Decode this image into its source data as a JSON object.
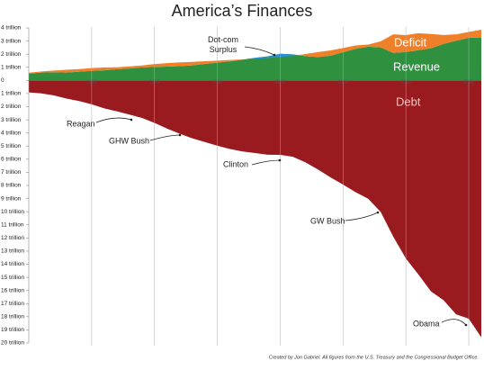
{
  "chart_data": {
    "type": "area",
    "title": "America’s Finances",
    "footnote": "Created by Jon Gabriel. All figures from the U.S. Treasury and the Congressional Budget Office.",
    "x": [
      1980,
      1981,
      1982,
      1983,
      1984,
      1985,
      1986,
      1987,
      1988,
      1989,
      1990,
      1991,
      1992,
      1993,
      1994,
      1995,
      1996,
      1997,
      1998,
      1999,
      2000,
      2001,
      2002,
      2003,
      2004,
      2005,
      2006,
      2007,
      2008,
      2009,
      2010,
      2011,
      2012,
      2013,
      2014,
      2015,
      2016
    ],
    "series": [
      {
        "name": "Revenue",
        "color": "#2f9140",
        "values": [
          0.52,
          0.6,
          0.62,
          0.6,
          0.67,
          0.73,
          0.77,
          0.85,
          0.91,
          0.99,
          1.03,
          1.05,
          1.09,
          1.15,
          1.26,
          1.35,
          1.45,
          1.58,
          1.72,
          1.83,
          2.03,
          1.99,
          1.85,
          1.78,
          1.88,
          2.15,
          2.41,
          2.57,
          2.52,
          2.1,
          2.16,
          2.3,
          2.45,
          2.78,
          3.02,
          3.25,
          3.27
        ]
      },
      {
        "name": "Deficit",
        "color": "#f07f2a",
        "surplus_color": "#2b8fd2",
        "values": [
          0.07,
          0.08,
          0.13,
          0.21,
          0.19,
          0.21,
          0.22,
          0.15,
          0.16,
          0.15,
          0.22,
          0.27,
          0.29,
          0.26,
          0.2,
          0.16,
          0.11,
          0.02,
          -0.07,
          -0.13,
          -0.24,
          -0.13,
          0.16,
          0.38,
          0.41,
          0.32,
          0.25,
          0.16,
          0.46,
          1.41,
          1.29,
          1.3,
          1.09,
          0.68,
          0.49,
          0.44,
          0.59
        ]
      },
      {
        "name": "Debt",
        "color": "#9a1b1f",
        "values": [
          -0.91,
          -0.99,
          -1.14,
          -1.38,
          -1.57,
          -1.82,
          -2.13,
          -2.35,
          -2.6,
          -2.86,
          -3.23,
          -3.67,
          -4.06,
          -4.41,
          -4.69,
          -4.97,
          -5.22,
          -5.41,
          -5.53,
          -5.66,
          -5.67,
          -5.81,
          -6.23,
          -6.78,
          -7.38,
          -7.93,
          -8.51,
          -9.01,
          -10.02,
          -11.91,
          -13.56,
          -14.79,
          -16.07,
          -16.74,
          -17.82,
          -18.15,
          -19.57
        ]
      }
    ],
    "annotations": [
      "Dot-com Surplus",
      "Reagan",
      "GHW Bush",
      "Clinton",
      "GW Bush",
      "Obama"
    ],
    "xlim": [
      1980,
      2016
    ],
    "xticks": [
      1985,
      1990,
      1995,
      2000,
      2005,
      2010,
      2015
    ],
    "ylim": [
      -20,
      4
    ],
    "yticks": [
      {
        "value": 4,
        "label": "4 trillion"
      },
      {
        "value": 3,
        "label": "3 trillion"
      },
      {
        "value": 2,
        "label": "2 trillion"
      },
      {
        "value": 1,
        "label": "1 trillion"
      },
      0,
      {
        "value": -1,
        "label": "1 trillion"
      },
      {
        "value": -2,
        "label": "2 trillion"
      },
      {
        "value": -3,
        "label": "3 trillion"
      },
      {
        "value": -4,
        "label": "4 trillion"
      },
      {
        "value": -5,
        "label": "5 trillion"
      },
      {
        "value": -6,
        "label": "6 trillion"
      },
      {
        "value": -7,
        "label": "7 trillion"
      },
      {
        "value": -8,
        "label": "8 trillion"
      },
      {
        "value": -9,
        "label": "9 trillion"
      },
      {
        "value": -10,
        "label": "10 trillion"
      },
      {
        "value": -11,
        "label": "11 trillion"
      },
      {
        "value": -12,
        "label": "12 trillion"
      },
      {
        "value": -13,
        "label": "13 trillion"
      },
      {
        "value": -14,
        "label": "14 trillion"
      },
      {
        "value": -15,
        "label": "15 trillion"
      },
      {
        "value": -16,
        "label": "16 trillion"
      },
      {
        "value": -17,
        "label": "17 trillion"
      },
      {
        "value": -18,
        "label": "18 trillion"
      },
      {
        "value": -19,
        "label": "19 trillion"
      },
      {
        "value": -20,
        "label": "20 trillion"
      }
    ],
    "grid": true
  }
}
